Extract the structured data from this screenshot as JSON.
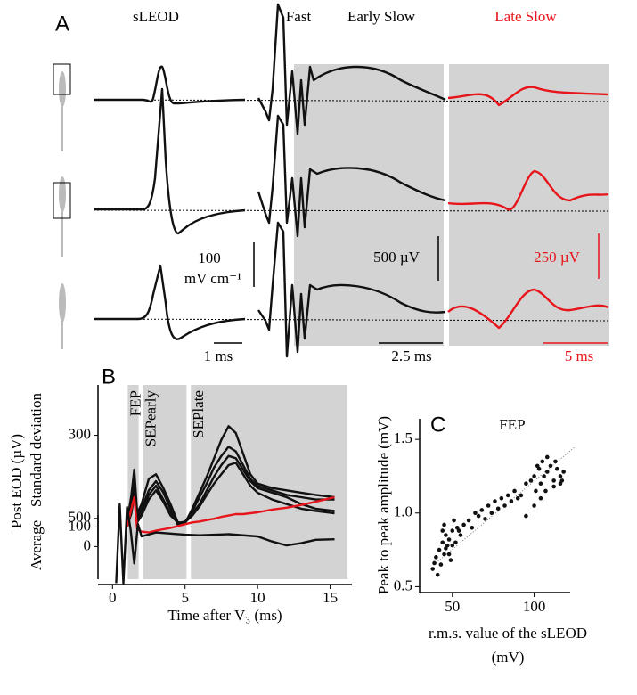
{
  "panel_a": {
    "letter": "A",
    "sleod": "sLEOD",
    "fast": "Fast",
    "early_slow": "Early Slow",
    "late_slow": "Late Slow",
    "scale_100": "100",
    "scale_unit": "mV cm⁻¹",
    "scale_500": "500 µV",
    "scale_250": "250 µV",
    "time_1": "1 ms",
    "time_2_5": "2.5 ms",
    "time_5": "5 ms"
  },
  "chart_data": [
    {
      "type": "line",
      "letter": "B",
      "ylabel_outer": "Post EOD (µV)",
      "ylabel": "Standard deviation",
      "xlabel": "Time after V₃ (ms)",
      "xlim": [
        -1,
        16.5
      ],
      "xticks": [
        0,
        5,
        10,
        15
      ],
      "ylim": [
        60,
        410
      ],
      "yticks": [
        100,
        300
      ],
      "regions": [
        {
          "label": "FEP",
          "x": [
            1.05,
            1.8
          ]
        },
        {
          "label": "SEPearly",
          "x": [
            2.1,
            5.1
          ]
        },
        {
          "label": "SEPlate",
          "x": [
            5.4,
            16.2
          ]
        }
      ],
      "x": [
        1,
        1.3,
        1.5,
        1.7,
        2,
        2.5,
        3,
        3.5,
        4,
        4.5,
        5,
        5.5,
        6,
        6.5,
        7,
        7.5,
        8,
        8.5,
        9,
        9.5,
        10,
        11,
        12,
        13,
        14,
        15.3
      ],
      "series": [
        {
          "color": "#111111",
          "values": [
            110,
            170,
            225,
            130,
            150,
            205,
            215,
            185,
            150,
            110,
            108,
            140,
            175,
            210,
            250,
            290,
            320,
            305,
            260,
            215,
            195,
            185,
            180,
            175,
            170,
            165
          ]
        },
        {
          "color": "#111111",
          "values": [
            105,
            150,
            200,
            120,
            140,
            180,
            200,
            175,
            140,
            105,
            110,
            135,
            165,
            195,
            230,
            255,
            275,
            265,
            235,
            205,
            190,
            180,
            170,
            165,
            160,
            160
          ]
        },
        {
          "color": "#111111",
          "values": [
            100,
            140,
            180,
            115,
            130,
            170,
            190,
            160,
            130,
            108,
            112,
            130,
            150,
            180,
            210,
            235,
            255,
            250,
            225,
            200,
            185,
            175,
            165,
            150,
            140,
            135
          ]
        },
        {
          "color": "#111111",
          "values": [
            100,
            130,
            170,
            110,
            125,
            160,
            180,
            155,
            125,
            110,
            110,
            125,
            145,
            170,
            195,
            215,
            235,
            240,
            215,
            190,
            175,
            160,
            150,
            140,
            135,
            130
          ]
        },
        {
          "color": "#e8141b",
          "values": [
            100,
            140,
            165,
            95,
            90,
            88,
            92,
            95,
            98,
            102,
            106,
            110,
            112,
            115,
            118,
            122,
            125,
            128,
            128,
            130,
            132,
            138,
            142,
            148,
            155,
            165
          ]
        }
      ]
    },
    {
      "type": "line",
      "ylabel": "Average",
      "ylim": [
        -580,
        560
      ],
      "yticks": [
        0,
        500
      ],
      "x": [
        0.25,
        0.5,
        0.75,
        1.0,
        1.25,
        1.5,
        1.75,
        2.0,
        3.0,
        4.0,
        5.0,
        6.0,
        8.0,
        10.0,
        11.0,
        12.0,
        13.0,
        14.0,
        15.3
      ],
      "series": [
        {
          "color": "#111111",
          "values": [
            -650,
            750,
            -650,
            700,
            300,
            -300,
            400,
            180,
            250,
            230,
            210,
            200,
            220,
            180,
            90,
            20,
            60,
            120,
            130
          ]
        }
      ]
    },
    {
      "type": "scatter",
      "letter": "C",
      "title": "FEP",
      "ylabel": "Peak to peak amplitude (mV)",
      "xlabel": [
        "r.m.s. value of the sLEOD",
        "(mV)"
      ],
      "xlim": [
        30,
        122
      ],
      "xticks": [
        50,
        100
      ],
      "ylim": [
        0.46,
        1.64
      ],
      "yticks": [
        0.5,
        {
          "value": 1,
          "label": "1.0"
        },
        1.5
      ],
      "color": "#111111",
      "fit_line": {
        "x": [
          40,
          125
        ],
        "y": [
          0.66,
          1.45
        ]
      },
      "x": [
        38,
        40,
        42,
        43,
        44,
        45,
        46,
        47,
        48,
        49,
        50,
        52,
        53,
        55,
        41,
        44,
        46,
        48,
        39,
        45,
        50,
        51,
        54,
        57,
        60,
        62,
        64,
        66,
        68,
        70,
        72,
        74,
        76,
        78,
        80,
        82,
        84,
        86,
        88,
        90,
        92,
        95,
        98,
        100,
        101,
        103,
        104,
        105,
        106,
        108,
        110,
        112,
        114,
        116,
        118,
        100,
        104,
        108,
        112,
        116,
        95,
        102,
        107,
        113,
        117
      ],
      "y": [
        0.62,
        0.7,
        0.75,
        0.65,
        0.8,
        0.72,
        0.85,
        0.78,
        0.82,
        0.68,
        0.88,
        0.8,
        0.9,
        0.85,
        0.58,
        0.88,
        0.76,
        0.72,
        0.66,
        0.92,
        0.78,
        0.95,
        0.88,
        0.92,
        0.95,
        0.9,
        1.0,
        0.98,
        1.02,
        0.96,
        1.05,
        1.0,
        1.08,
        1.03,
        1.1,
        1.05,
        1.12,
        1.08,
        1.15,
        1.1,
        1.12,
        1.2,
        1.22,
        1.25,
        1.15,
        1.3,
        1.2,
        1.35,
        1.25,
        1.28,
        1.32,
        1.22,
        1.3,
        1.25,
        1.28,
        1.05,
        1.1,
        1.38,
        1.18,
        1.2,
        0.98,
        1.32,
        1.15,
        1.35,
        1.22
      ]
    }
  ]
}
